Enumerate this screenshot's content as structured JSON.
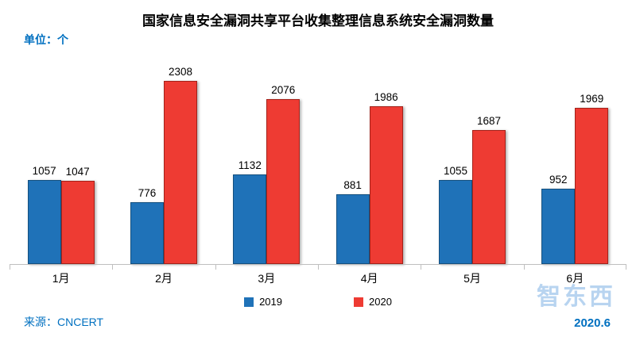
{
  "title": "国家信息安全漏洞共享平台收集整理信息系统安全漏洞数量",
  "unit_label": "单位：个",
  "source_label": "来源：CNCERT",
  "date_label": "2020.6",
  "watermark": "智东西",
  "colors": {
    "accent_text": "#0070C0",
    "axis": "#BFBFBF",
    "blue_fill": "#1F72B8",
    "blue_border": "#14507F",
    "red_fill": "#EE3B33",
    "red_border": "#A3221A"
  },
  "chart_data": {
    "type": "bar",
    "title": "国家信息安全漏洞共享平台收集整理信息系统安全漏洞数量",
    "xlabel": "",
    "ylabel": "单位：个",
    "categories": [
      "1月",
      "2月",
      "3月",
      "4月",
      "5月",
      "6月"
    ],
    "series": [
      {
        "name": "2019",
        "fill": "#1F72B8",
        "border": "#14507F",
        "values": [
          1057,
          776,
          1132,
          881,
          1055,
          952
        ]
      },
      {
        "name": "2020",
        "fill": "#EE3B33",
        "border": "#A3221A",
        "values": [
          1047,
          2308,
          2076,
          1986,
          1687,
          1969
        ]
      }
    ],
    "ylim": [
      0,
      2400
    ],
    "grid": false,
    "legend_position": "bottom"
  }
}
